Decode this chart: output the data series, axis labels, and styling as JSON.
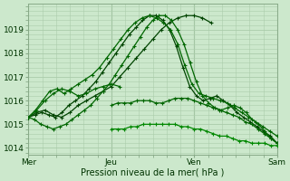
{
  "title": "",
  "xlabel": "Pression niveau de la mer( hPa )",
  "bg_color": "#cce8cc",
  "plot_bg_color": "#cce8cc",
  "grid_color": "#aaccaa",
  "line_colors": [
    "#004400",
    "#004400",
    "#006600",
    "#006600",
    "#006600",
    "#006600",
    "#008800"
  ],
  "xlim": [
    0,
    3
  ],
  "ylim": [
    1013.7,
    1020.1
  ],
  "yticks": [
    1014,
    1015,
    1016,
    1017,
    1018,
    1019
  ],
  "xtick_labels": [
    "Mer",
    "Jeu",
    "Ven",
    "Sam"
  ],
  "xtick_positions": [
    0,
    1,
    2,
    3
  ],
  "series": [
    {
      "xstart": 0,
      "xend": 2.2,
      "y": [
        1015.3,
        1015.5,
        1015.6,
        1015.4,
        1015.3,
        1015.5,
        1015.8,
        1016.0,
        1016.2,
        1016.4,
        1016.6,
        1017.0,
        1017.4,
        1017.8,
        1018.2,
        1018.6,
        1019.0,
        1019.3,
        1019.5,
        1019.6,
        1019.6,
        1019.5,
        1019.3
      ]
    },
    {
      "xstart": 0,
      "xend": 3.0,
      "y": [
        1015.3,
        1015.4,
        1015.5,
        1015.4,
        1015.3,
        1015.5,
        1015.8,
        1016.0,
        1016.2,
        1016.5,
        1016.8,
        1017.2,
        1017.6,
        1018.0,
        1018.4,
        1018.8,
        1019.1,
        1019.4,
        1019.6,
        1019.6,
        1019.4,
        1019.0,
        1018.3,
        1017.4,
        1016.6,
        1016.2,
        1016.0,
        1016.1,
        1016.2,
        1016.0,
        1015.8,
        1015.5,
        1015.3,
        1015.1,
        1014.9,
        1014.7,
        1014.5,
        1014.2
      ]
    },
    {
      "xstart": 0,
      "xend": 3.0,
      "y": [
        1015.3,
        1015.2,
        1015.0,
        1014.9,
        1014.8,
        1014.9,
        1015.0,
        1015.2,
        1015.4,
        1015.6,
        1015.8,
        1016.1,
        1016.4,
        1016.7,
        1017.1,
        1017.5,
        1017.9,
        1018.3,
        1018.7,
        1019.1,
        1019.4,
        1019.6,
        1019.6,
        1019.4,
        1019.0,
        1018.4,
        1017.6,
        1016.8,
        1016.2,
        1015.9,
        1015.7,
        1015.6,
        1015.7,
        1015.8,
        1015.7,
        1015.5,
        1015.2,
        1015.0,
        1014.7,
        1014.4,
        1014.2
      ]
    },
    {
      "xstart": 0,
      "xend": 1.1,
      "y": [
        1015.3,
        1015.6,
        1016.0,
        1016.3,
        1016.5,
        1016.4,
        1016.2,
        1016.3,
        1016.5,
        1016.6,
        1016.7,
        1016.6
      ]
    },
    {
      "xstart": 0,
      "xend": 3.0,
      "y": [
        1015.3,
        1015.6,
        1016.0,
        1016.4,
        1016.5,
        1016.3,
        1016.5,
        1016.7,
        1016.9,
        1017.1,
        1017.4,
        1017.8,
        1018.2,
        1018.6,
        1019.0,
        1019.3,
        1019.5,
        1019.6,
        1019.5,
        1019.3,
        1019.0,
        1018.4,
        1017.5,
        1016.7,
        1016.3,
        1016.2,
        1016.1,
        1016.0,
        1015.9,
        1015.7,
        1015.5,
        1015.3,
        1015.1,
        1014.9,
        1014.7,
        1014.5
      ]
    },
    {
      "xstart": 1.0,
      "xend": 3.0,
      "y": [
        1015.8,
        1015.9,
        1015.9,
        1015.9,
        1016.0,
        1016.0,
        1016.0,
        1015.9,
        1015.9,
        1016.0,
        1016.1,
        1016.1,
        1016.1,
        1016.0,
        1015.9,
        1015.8,
        1015.7,
        1015.6,
        1015.5,
        1015.4,
        1015.3,
        1015.1,
        1015.0,
        1014.8,
        1014.6,
        1014.4,
        1014.2
      ]
    },
    {
      "xstart": 1.0,
      "xend": 3.0,
      "y": [
        1014.8,
        1014.8,
        1014.8,
        1014.9,
        1014.9,
        1015.0,
        1015.0,
        1015.0,
        1015.0,
        1015.0,
        1015.0,
        1014.9,
        1014.9,
        1014.8,
        1014.8,
        1014.7,
        1014.6,
        1014.5,
        1014.5,
        1014.4,
        1014.3,
        1014.3,
        1014.2,
        1014.2,
        1014.2,
        1014.1,
        1014.1
      ]
    }
  ]
}
